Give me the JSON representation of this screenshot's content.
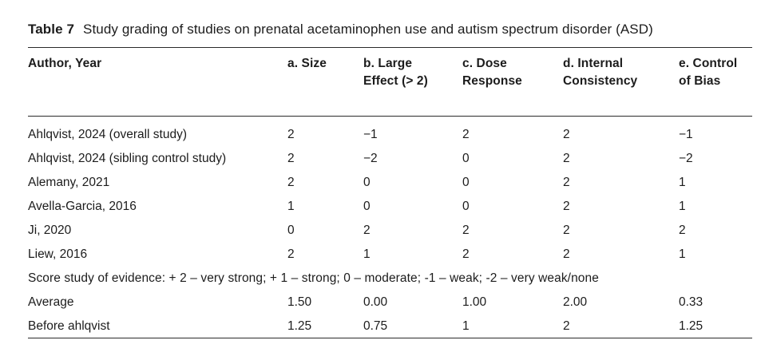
{
  "caption": {
    "label": "Table 7",
    "text": "Study grading of studies on prenatal acetaminophen use and autism spectrum disorder (ASD)"
  },
  "table": {
    "columns": [
      "Author, Year",
      "a. Size",
      "b. Large Effect (> 2)",
      "c. Dose Response",
      "d. Internal Consistency",
      "e. Control of Bias"
    ],
    "rows": [
      {
        "author": "Ahlqvist, 2024 (overall study)",
        "values": [
          "2",
          "−1",
          "2",
          "2",
          "−1"
        ]
      },
      {
        "author": "Ahlqvist, 2024 (sibling control study)",
        "values": [
          "2",
          "−2",
          "0",
          "2",
          "−2"
        ]
      },
      {
        "author": "Alemany, 2021",
        "values": [
          "2",
          "0",
          "0",
          "2",
          "1"
        ]
      },
      {
        "author": "Avella-Garcia, 2016",
        "values": [
          "1",
          "0",
          "0",
          "2",
          "1"
        ]
      },
      {
        "author": "Ji, 2020",
        "values": [
          "0",
          "2",
          "2",
          "2",
          "2"
        ]
      },
      {
        "author": "Liew, 2016",
        "values": [
          "2",
          "1",
          "2",
          "2",
          "1"
        ]
      }
    ],
    "legend": "Score study of evidence: + 2 – very strong; + 1 – strong; 0 – moderate; -1 – weak; -2 – very weak/none",
    "summary": [
      {
        "author": "Average",
        "values": [
          "1.50",
          "0.00",
          "1.00",
          "2.00",
          "0.33"
        ]
      },
      {
        "author": "Before ahlqvist",
        "values": [
          "1.25",
          "0.75",
          "1",
          "2",
          "1.25"
        ]
      }
    ]
  }
}
